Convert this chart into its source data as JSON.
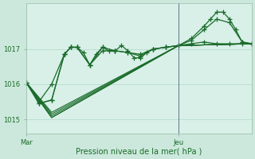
{
  "xlabel": "Pression niveau de la mer( hPa )",
  "background_color": "#cce8dc",
  "plot_bg_color": "#d8f0e8",
  "grid_color": "#b0d8c8",
  "line_color": "#1a6b2a",
  "ylim": [
    1014.6,
    1018.3
  ],
  "xlim": [
    0,
    71
  ],
  "xtick_labels": [
    "Mar",
    "Jeu"
  ],
  "xtick_positions": [
    0,
    48
  ],
  "ytick_labels": [
    "1015",
    "1016",
    "1017"
  ],
  "ytick_values": [
    1015,
    1016,
    1017
  ],
  "vline_x": 48,
  "series": [
    {
      "x": [
        0,
        4,
        8,
        12,
        14,
        16,
        18,
        20,
        22,
        24,
        26,
        28,
        30,
        32,
        34,
        36,
        38,
        40,
        44,
        48,
        52,
        56,
        60,
        64,
        68,
        71
      ],
      "y": [
        1016.05,
        1015.5,
        1016.0,
        1016.85,
        1017.05,
        1017.05,
        1016.9,
        1016.55,
        1016.85,
        1017.05,
        1016.95,
        1016.95,
        1017.1,
        1016.95,
        1016.75,
        1016.75,
        1016.9,
        1017.0,
        1017.05,
        1017.1,
        1017.15,
        1017.2,
        1017.15,
        1017.15,
        1017.15,
        1017.15
      ],
      "marker": "+"
    },
    {
      "x": [
        0,
        4,
        8,
        12,
        14,
        16,
        20,
        24,
        28,
        32,
        36,
        40,
        44,
        48,
        52,
        56,
        60,
        64,
        68,
        71
      ],
      "y": [
        1016.05,
        1015.45,
        1015.55,
        1016.85,
        1017.05,
        1017.05,
        1016.55,
        1017.05,
        1016.95,
        1016.9,
        1016.8,
        1017.0,
        1017.05,
        1017.1,
        1017.25,
        1017.55,
        1017.85,
        1017.75,
        1017.2,
        1017.15
      ],
      "marker": "+"
    },
    {
      "x": [
        0,
        4,
        8,
        12,
        14,
        16,
        20,
        24,
        28,
        32,
        36,
        40,
        44,
        48,
        52,
        56,
        58,
        60,
        62,
        64,
        66,
        68,
        71
      ],
      "y": [
        1016.05,
        1015.45,
        1015.55,
        1016.85,
        1017.05,
        1017.05,
        1016.55,
        1016.95,
        1016.95,
        1016.9,
        1016.85,
        1017.0,
        1017.05,
        1017.1,
        1017.3,
        1017.65,
        1017.85,
        1018.05,
        1018.05,
        1017.85,
        1017.55,
        1017.2,
        1017.15
      ],
      "marker": "+"
    },
    {
      "x": [
        0,
        8,
        48,
        71
      ],
      "y": [
        1016.05,
        1015.05,
        1017.1,
        1017.15
      ],
      "marker": null
    },
    {
      "x": [
        0,
        8,
        48,
        71
      ],
      "y": [
        1016.05,
        1015.05,
        1017.1,
        1017.15
      ],
      "marker": null
    },
    {
      "x": [
        0,
        8,
        48,
        71
      ],
      "y": [
        1016.05,
        1015.1,
        1017.1,
        1017.15
      ],
      "marker": null
    },
    {
      "x": [
        0,
        8,
        48,
        71
      ],
      "y": [
        1016.05,
        1015.15,
        1017.1,
        1017.15
      ],
      "marker": null
    },
    {
      "x": [
        0,
        8,
        48,
        71
      ],
      "y": [
        1016.05,
        1015.2,
        1017.1,
        1017.15
      ],
      "marker": null
    }
  ]
}
